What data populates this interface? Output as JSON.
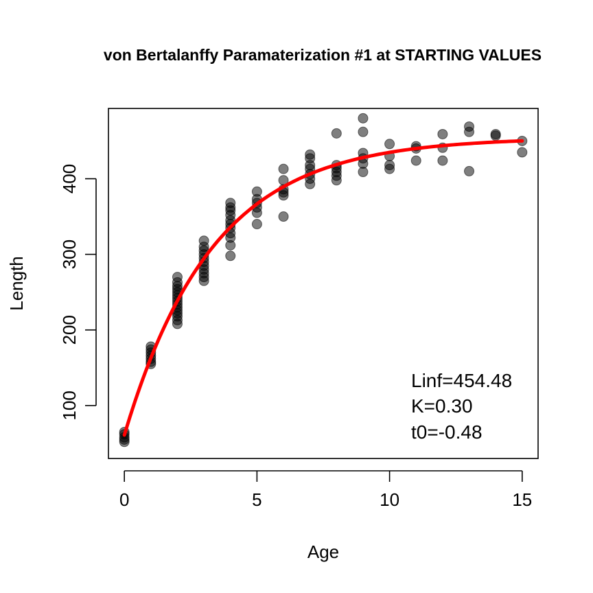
{
  "chart_data": {
    "type": "scatter",
    "title": "von Bertalanffy Paramaterization #1 at STARTING VALUES",
    "xlabel": "Age",
    "ylabel": "Length",
    "xlim": [
      -0.6,
      15.6
    ],
    "ylim": [
      30,
      493
    ],
    "x_ticks": [
      0,
      5,
      10,
      15
    ],
    "y_ticks": [
      100,
      200,
      300,
      400
    ],
    "grid": false,
    "point_color": "#000000",
    "point_alpha": 0.5,
    "line_color": "#ff0000",
    "annotations": [
      "Linf=454.48",
      "K=0.30",
      "t0=-0.48"
    ],
    "curve": {
      "Linf": 454.48,
      "K": 0.3,
      "t0": -0.48,
      "x_range": [
        0,
        15
      ]
    },
    "points": [
      [
        0,
        52
      ],
      [
        0,
        55
      ],
      [
        0,
        58
      ],
      [
        0,
        62
      ],
      [
        0,
        65
      ],
      [
        1,
        155
      ],
      [
        1,
        158
      ],
      [
        1,
        162
      ],
      [
        1,
        166
      ],
      [
        1,
        170
      ],
      [
        1,
        174
      ],
      [
        1,
        178
      ],
      [
        2,
        208
      ],
      [
        2,
        213
      ],
      [
        2,
        218
      ],
      [
        2,
        222
      ],
      [
        2,
        226
      ],
      [
        2,
        230
      ],
      [
        2,
        234
      ],
      [
        2,
        238
      ],
      [
        2,
        242
      ],
      [
        2,
        246
      ],
      [
        2,
        250
      ],
      [
        2,
        254
      ],
      [
        2,
        258
      ],
      [
        2,
        263
      ],
      [
        2,
        270
      ],
      [
        3,
        265
      ],
      [
        3,
        270
      ],
      [
        3,
        275
      ],
      [
        3,
        280
      ],
      [
        3,
        285
      ],
      [
        3,
        290
      ],
      [
        3,
        295
      ],
      [
        3,
        300
      ],
      [
        3,
        305
      ],
      [
        3,
        310
      ],
      [
        3,
        318
      ],
      [
        4,
        298
      ],
      [
        4,
        312
      ],
      [
        4,
        322
      ],
      [
        4,
        328
      ],
      [
        4,
        335
      ],
      [
        4,
        340
      ],
      [
        4,
        345
      ],
      [
        4,
        352
      ],
      [
        4,
        358
      ],
      [
        4,
        362
      ],
      [
        4,
        368
      ],
      [
        5,
        340
      ],
      [
        5,
        355
      ],
      [
        5,
        362
      ],
      [
        5,
        368
      ],
      [
        5,
        373
      ],
      [
        5,
        383
      ],
      [
        6,
        350
      ],
      [
        6,
        378
      ],
      [
        6,
        382
      ],
      [
        6,
        386
      ],
      [
        6,
        398
      ],
      [
        6,
        413
      ],
      [
        7,
        393
      ],
      [
        7,
        400
      ],
      [
        7,
        406
      ],
      [
        7,
        413
      ],
      [
        7,
        418
      ],
      [
        7,
        427
      ],
      [
        7,
        432
      ],
      [
        8,
        398
      ],
      [
        8,
        404
      ],
      [
        8,
        409
      ],
      [
        8,
        414
      ],
      [
        8,
        418
      ],
      [
        8,
        460
      ],
      [
        9,
        409
      ],
      [
        9,
        420
      ],
      [
        9,
        427
      ],
      [
        9,
        434
      ],
      [
        9,
        462
      ],
      [
        9,
        480
      ],
      [
        10,
        413
      ],
      [
        10,
        418
      ],
      [
        10,
        430
      ],
      [
        10,
        446
      ],
      [
        11,
        424
      ],
      [
        11,
        440
      ],
      [
        11,
        443
      ],
      [
        12,
        424
      ],
      [
        12,
        441
      ],
      [
        12,
        459
      ],
      [
        13,
        410
      ],
      [
        13,
        462
      ],
      [
        13,
        469
      ],
      [
        14,
        457
      ],
      [
        14,
        459
      ],
      [
        15,
        435
      ],
      [
        15,
        450
      ]
    ]
  }
}
